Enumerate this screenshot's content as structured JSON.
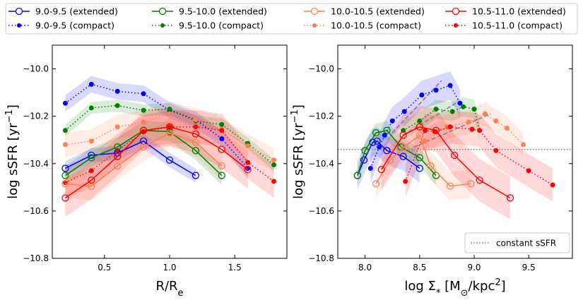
{
  "figure_legend": [
    {
      "label": "9.0-9.5 (extended)",
      "color": "#0000ff",
      "style": "solid",
      "marker": "open"
    },
    {
      "label": "9.5-10.0 (extended)",
      "color": "#008000",
      "style": "solid",
      "marker": "open"
    },
    {
      "label": "10.0-10.5 (extended)",
      "color": "#ff7f50",
      "style": "solid",
      "marker": "open"
    },
    {
      "label": "10.5-11.0 (extended)",
      "color": "#ff0000",
      "style": "solid",
      "marker": "open"
    },
    {
      "label": "9.0-9.5 (compact)",
      "color": "#0000ff",
      "style": "dotted",
      "marker": "filled"
    },
    {
      "label": "9.5-10.0 (compact)",
      "color": "#008000",
      "style": "dotted",
      "marker": "filled"
    },
    {
      "label": "10.0-10.5 (compact)",
      "color": "#ff7f50",
      "style": "dotted",
      "marker": "filled"
    },
    {
      "label": "10.5-11.0 (compact)",
      "color": "#ff0000",
      "style": "dotted",
      "marker": "filled"
    }
  ],
  "chart_data": [
    {
      "type": "line",
      "xlim": [
        0.1,
        1.9
      ],
      "ylim": [
        -10.8,
        -9.9
      ],
      "xticks": [
        0.5,
        1.0,
        1.5
      ],
      "xtick_labels": [
        "0.5",
        "1.0",
        "1.5"
      ],
      "yticks": [
        -10.8,
        -10.6,
        -10.4,
        -10.2,
        -10.0
      ],
      "ytick_labels": [
        "−10.8",
        "−10.6",
        "−10.4",
        "−10.2",
        "−10.0"
      ],
      "xlabel": "R/R",
      "xlabel_sub": "e",
      "ylabel": "log sSFR [yr",
      "ylabel_sup": "−1",
      "ylabel_end": "]",
      "series": [
        {
          "name": "9.0-9.5 (compact)",
          "color": "#0000ff",
          "style": "dotted",
          "marker": "filled",
          "band": 0.035,
          "x": [
            0.2,
            0.4,
            0.6,
            0.8,
            1.0,
            1.2,
            1.4,
            1.6
          ],
          "y": [
            -10.145,
            -10.065,
            -10.095,
            -10.105,
            -10.175,
            -10.215,
            -10.295,
            -10.42
          ]
        },
        {
          "name": "9.5-10.0 (compact)",
          "color": "#008000",
          "style": "dotted",
          "marker": "filled",
          "band": 0.025,
          "x": [
            0.2,
            0.4,
            0.6,
            0.8,
            1.0,
            1.2,
            1.4,
            1.6,
            1.8
          ],
          "y": [
            -10.26,
            -10.165,
            -10.155,
            -10.175,
            -10.17,
            -10.22,
            -10.235,
            -10.315,
            -10.405
          ]
        },
        {
          "name": "10.0-10.5 (compact)",
          "color": "#ff7f50",
          "style": "dotted",
          "marker": "filled",
          "band": 0.05,
          "x": [
            0.2,
            0.4,
            0.6,
            0.8,
            1.0,
            1.2,
            1.4,
            1.6,
            1.8
          ],
          "y": [
            -10.32,
            -10.305,
            -10.245,
            -10.225,
            -10.19,
            -10.215,
            -10.255,
            -10.325,
            -10.385
          ]
        },
        {
          "name": "10.5-11.0 (compact)",
          "color": "#ff0000",
          "style": "dotted",
          "marker": "filled",
          "band": 0.07,
          "x": [
            0.2,
            0.4,
            0.6,
            0.8,
            1.0,
            1.2,
            1.4,
            1.6,
            1.8
          ],
          "y": [
            -10.48,
            -10.43,
            -10.345,
            -10.265,
            -10.245,
            -10.245,
            -10.26,
            -10.395,
            -10.475
          ]
        },
        {
          "name": "9.0-9.5 (extended)",
          "color": "#0000ff",
          "style": "solid",
          "marker": "open",
          "band": 0.03,
          "x": [
            0.2,
            0.4,
            0.6,
            0.8,
            1.0,
            1.2
          ],
          "y": [
            -10.42,
            -10.365,
            -10.355,
            -10.305,
            -10.385,
            -10.45
          ]
        },
        {
          "name": "9.5-10.0 (extended)",
          "color": "#008000",
          "style": "solid",
          "marker": "open",
          "band": 0.04,
          "x": [
            0.2,
            0.4,
            0.6,
            0.8,
            1.0,
            1.2,
            1.4
          ],
          "y": [
            -10.45,
            -10.375,
            -10.33,
            -10.26,
            -10.265,
            -10.345,
            -10.45
          ]
        },
        {
          "name": "10.0-10.5 (extended)",
          "color": "#ff7f50",
          "style": "solid",
          "marker": "open",
          "band": 0.06,
          "x": [
            0.2,
            0.4,
            0.6,
            0.8,
            1.0,
            1.2,
            1.4
          ],
          "y": [
            -10.485,
            -10.495,
            -10.41,
            -10.33,
            -10.27,
            -10.31,
            -10.41
          ]
        },
        {
          "name": "10.5-11.0 (extended)",
          "color": "#ff0000",
          "style": "solid",
          "marker": "open",
          "band": 0.08,
          "x": [
            0.2,
            0.4,
            0.6,
            0.8,
            1.0,
            1.2,
            1.4,
            1.6
          ],
          "y": [
            -10.545,
            -10.47,
            -10.37,
            -10.26,
            -10.245,
            -10.275,
            -10.34,
            -10.425
          ]
        }
      ]
    },
    {
      "type": "line",
      "xlim": [
        7.75,
        9.9
      ],
      "ylim": [
        -10.8,
        -9.9
      ],
      "xticks": [
        8.0,
        8.5,
        9.0,
        9.5
      ],
      "xtick_labels": [
        "8.0",
        "8.5",
        "9.0",
        "9.5"
      ],
      "yticks": [
        -10.8,
        -10.6,
        -10.4,
        -10.2,
        -10.0
      ],
      "ytick_labels": [
        "−10.8",
        "−10.6",
        "−10.4",
        "−10.2",
        "−10.0"
      ],
      "xlabel": "log Σ",
      "xlabel_sub": "*",
      "xlabel_end": " [M",
      "xlabel_sub2": "⊙",
      "xlabel_end2": "/kpc",
      "xlabel_sup": "2",
      "xlabel_end3": "]",
      "ylabel": "log sSFR [yr",
      "ylabel_sup": "−1",
      "ylabel_end": "]",
      "hline": {
        "y": -10.34,
        "label": "constant sSFR",
        "color": "#808080"
      },
      "dashed_lines": [
        {
          "x": [
            8.25,
            8.7
          ],
          "y": [
            -10.27,
            -10.05
          ],
          "color": "#808080"
        },
        {
          "x": [
            8.35,
            8.85
          ],
          "y": [
            -10.28,
            -10.14
          ],
          "color": "#808080"
        },
        {
          "x": [
            8.45,
            9.15
          ],
          "y": [
            -10.33,
            -10.19
          ],
          "color": "#808080"
        }
      ],
      "series": [
        {
          "name": "9.0-9.5 (compact)",
          "color": "#0000ff",
          "style": "dotted",
          "marker": "filled",
          "band": 0.06,
          "x": [
            8.05,
            8.13,
            8.18,
            8.25,
            8.36,
            8.52,
            8.65,
            8.78,
            8.87
          ],
          "y": [
            -10.42,
            -10.33,
            -10.28,
            -10.22,
            -10.18,
            -10.11,
            -10.09,
            -10.07,
            -10.145
          ]
        },
        {
          "name": "9.5-10.0 (compact)",
          "color": "#008000",
          "style": "dotted",
          "marker": "filled",
          "band": 0.04,
          "x": [
            8.35,
            8.5,
            8.65,
            8.8,
            8.9,
            9.0,
            9.05
          ],
          "y": [
            -10.26,
            -10.22,
            -10.17,
            -10.18,
            -10.16,
            -10.17,
            -10.26
          ]
        },
        {
          "name": "10.0-10.5 (compact)",
          "color": "#ff7f50",
          "style": "dotted",
          "marker": "filled",
          "band": 0.05,
          "x": [
            8.55,
            8.75,
            8.95,
            9.1,
            9.2,
            9.3,
            9.45
          ],
          "y": [
            -10.305,
            -10.245,
            -10.225,
            -10.19,
            -10.22,
            -10.25,
            -10.32
          ]
        },
        {
          "name": "10.5-11.0 (compact)",
          "color": "#ff0000",
          "style": "dotted",
          "marker": "filled",
          "band": 0.07,
          "x": [
            8.37,
            8.55,
            8.64,
            8.78,
            8.98,
            9.05,
            9.2,
            9.5,
            9.72
          ],
          "y": [
            -10.475,
            -10.26,
            -10.265,
            -10.245,
            -10.255,
            -10.26,
            -10.345,
            -10.43,
            -10.49
          ]
        },
        {
          "name": "9.0-9.5 (extended)",
          "color": "#0000ff",
          "style": "solid",
          "marker": "open",
          "band": 0.06,
          "x": [
            7.93,
            7.99,
            8.07,
            8.11,
            8.2,
            8.35,
            8.5
          ],
          "y": [
            -10.45,
            -10.385,
            -10.31,
            -10.305,
            -10.345,
            -10.37,
            -10.42
          ]
        },
        {
          "name": "9.5-10.0 (extended)",
          "color": "#008000",
          "style": "solid",
          "marker": "open",
          "band": 0.04,
          "x": [
            7.93,
            8.0,
            8.1,
            8.2,
            8.33,
            8.5,
            8.65
          ],
          "y": [
            -10.45,
            -10.345,
            -10.27,
            -10.26,
            -10.33,
            -10.375,
            -10.45
          ]
        },
        {
          "name": "10.0-10.5 (extended)",
          "color": "#ff7f50",
          "style": "solid",
          "marker": "open",
          "band": 0.06,
          "x": [
            8.1,
            8.23,
            8.36,
            8.5,
            8.6,
            8.78,
            8.97
          ],
          "y": [
            -10.485,
            -10.385,
            -10.33,
            -10.28,
            -10.41,
            -10.495,
            -10.485
          ]
        },
        {
          "name": "10.5-11.0 (extended)",
          "color": "#ff0000",
          "style": "solid",
          "marker": "open",
          "band": 0.09,
          "x": [
            8.15,
            8.35,
            8.5,
            8.65,
            8.82,
            9.05,
            9.33
          ],
          "y": [
            -10.425,
            -10.28,
            -10.245,
            -10.26,
            -10.365,
            -10.47,
            -10.545
          ]
        }
      ]
    }
  ]
}
